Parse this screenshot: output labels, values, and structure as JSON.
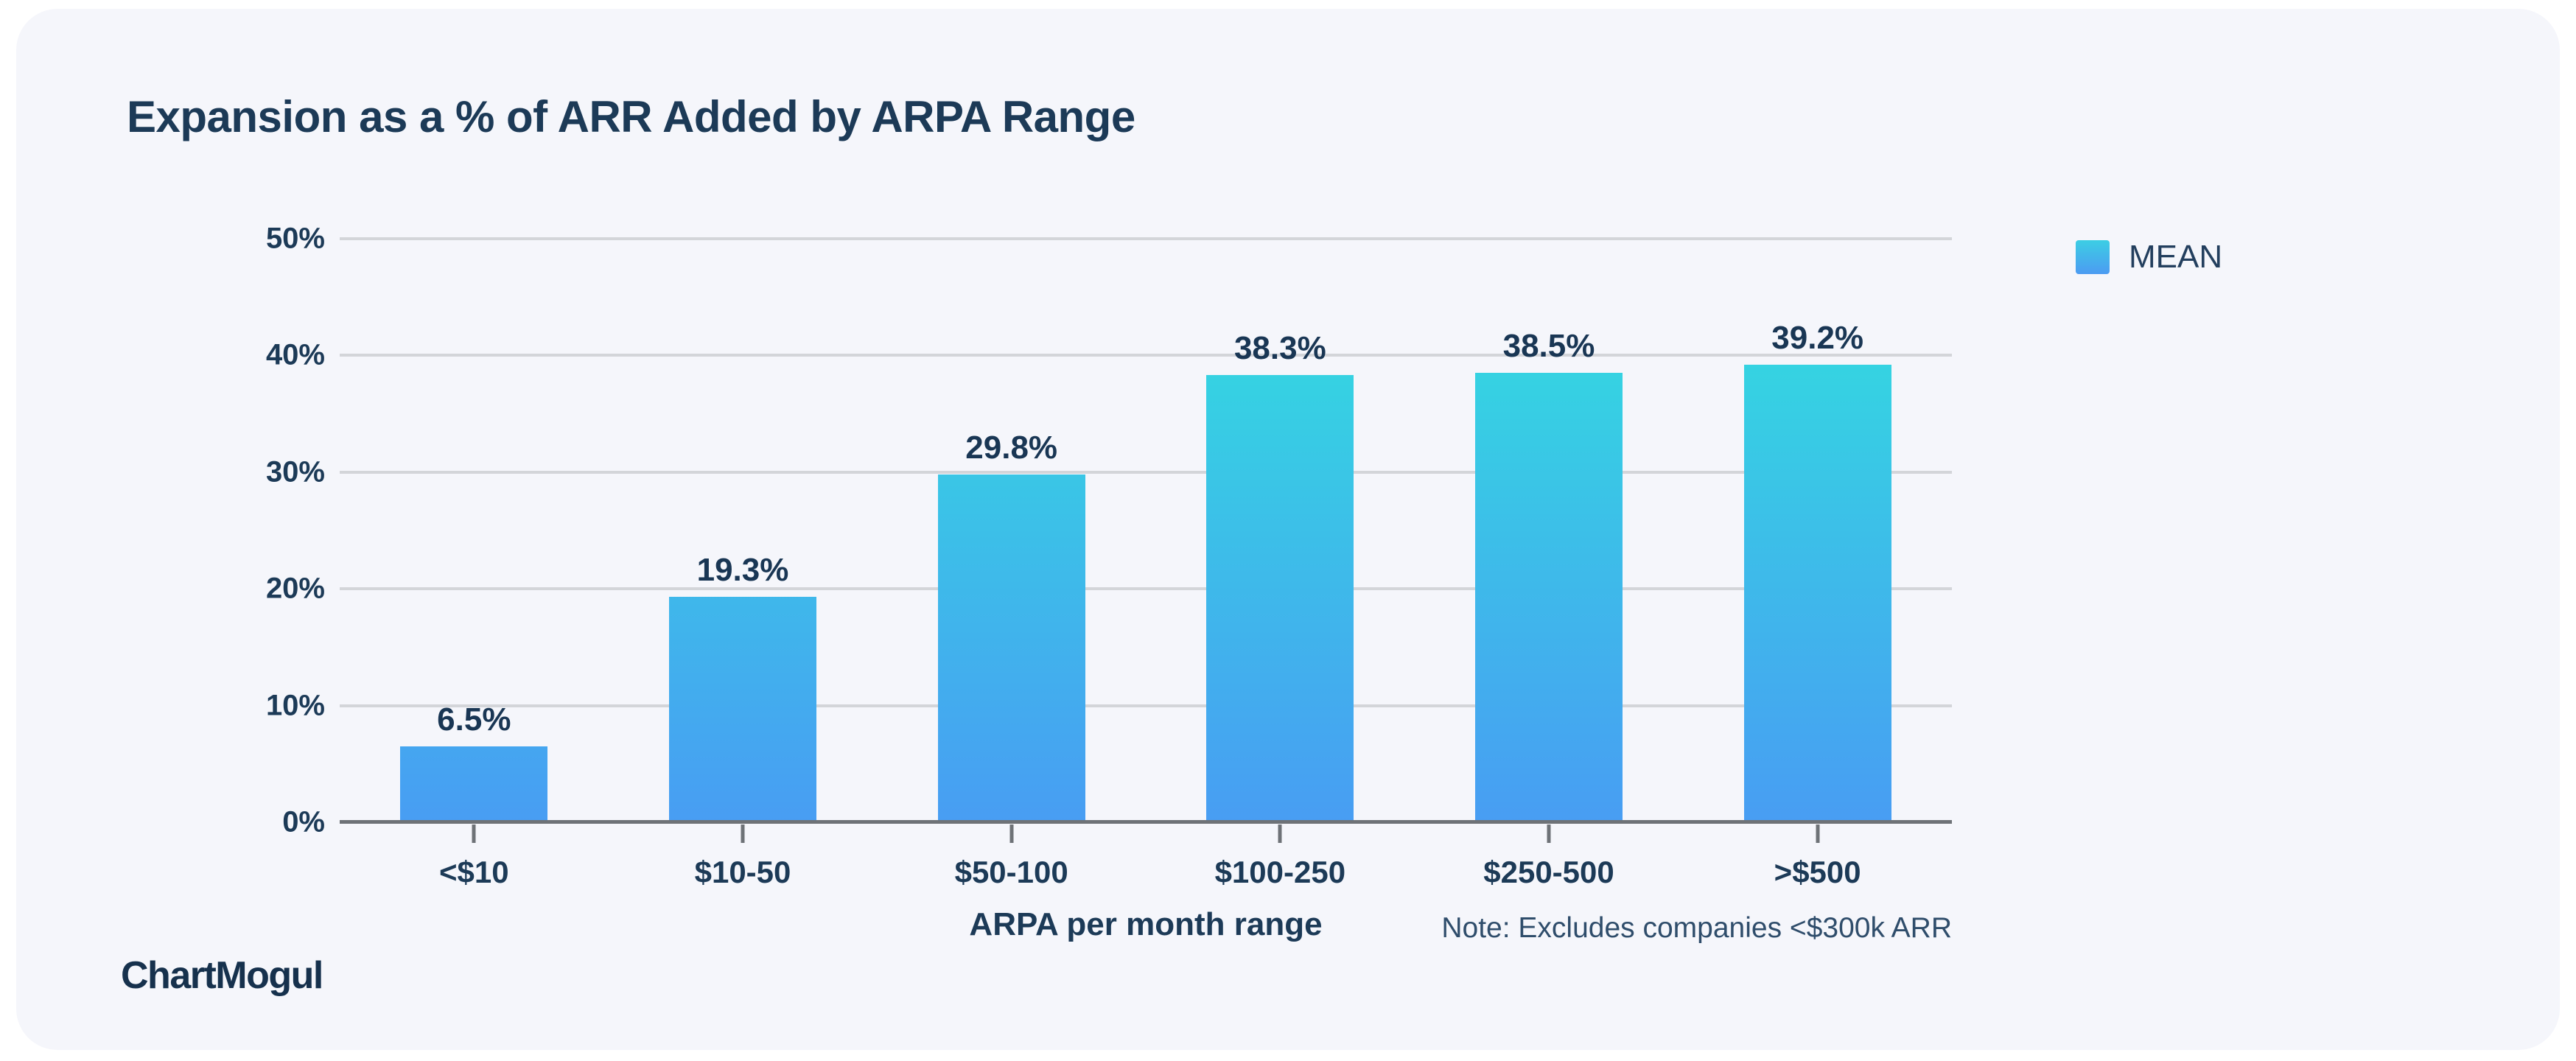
{
  "page": {
    "background": "#FFFFFF",
    "card_background": "#F5F6FB"
  },
  "header": {
    "title": "Expansion as a % of ARR Added by ARPA Range"
  },
  "legend": {
    "position": "top-right",
    "items": [
      {
        "label": "MEAN",
        "swatch_gradient_top": "#3CCEE4",
        "swatch_gradient_bottom": "#4C9BF2"
      }
    ]
  },
  "chart_data": {
    "type": "bar",
    "title": "Expansion as a % of ARR Added by ARPA Range",
    "categories": [
      "<$10",
      "$10-50",
      "$50-100",
      "$100-250",
      "$250-500",
      ">$500"
    ],
    "series": [
      {
        "name": "MEAN",
        "values": [
          6.5,
          19.3,
          29.8,
          38.3,
          38.5,
          39.2
        ]
      }
    ],
    "value_labels": [
      "6.5%",
      "19.3%",
      "29.8%",
      "38.3%",
      "38.5%",
      "39.2%"
    ],
    "xlabel": "ARPA per month range",
    "ylabel": "",
    "ylim": [
      0,
      50
    ],
    "ytick_step": 10,
    "ytick_labels": [
      "0%",
      "10%",
      "20%",
      "30%",
      "40%",
      "50%"
    ],
    "grid": true,
    "gridline_color": "#D3D5D9",
    "axis_color": "#6E7277",
    "bar_color_top": "#35D3E2",
    "bar_color_bottom": "#489DF3"
  },
  "footer": {
    "note": "Note: Excludes companies <$300k ARR",
    "brand": "ChartMogul"
  }
}
